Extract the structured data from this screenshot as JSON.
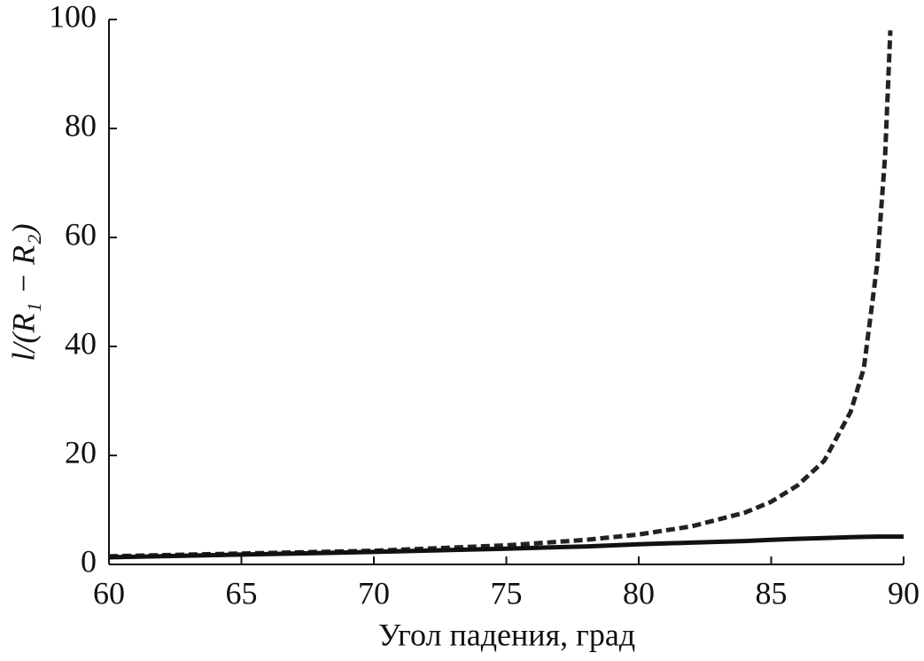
{
  "chart_data": {
    "type": "line",
    "xlabel": "Угол падения, град",
    "ylabel": "l/(R₁ − R₂)",
    "x": [
      60,
      65,
      70,
      75,
      78,
      80,
      82,
      84,
      85,
      86,
      87,
      88,
      88.5,
      89,
      89.3,
      89.5,
      90
    ],
    "series": [
      {
        "color": "#222222",
        "line_style": "dashed",
        "values": [
          1.5,
          2,
          2.5,
          3.5,
          4.5,
          5.5,
          7,
          9.5,
          11.5,
          14.5,
          19,
          28,
          36,
          55,
          75,
          98,
          null
        ]
      },
      {
        "color": "#111111",
        "line_style": "solid",
        "values": [
          1.3,
          1.8,
          2.3,
          2.9,
          3.3,
          3.7,
          4.0,
          4.3,
          4.5,
          4.7,
          4.85,
          5.0,
          5.05,
          5.1,
          5.1,
          5.1,
          5.1
        ]
      }
    ],
    "xlim": [
      60,
      90
    ],
    "xticks": [
      60,
      65,
      70,
      75,
      80,
      85,
      90
    ],
    "ylim": [
      0,
      100
    ],
    "yticks": [
      0,
      20,
      40,
      60,
      80,
      100
    ]
  }
}
